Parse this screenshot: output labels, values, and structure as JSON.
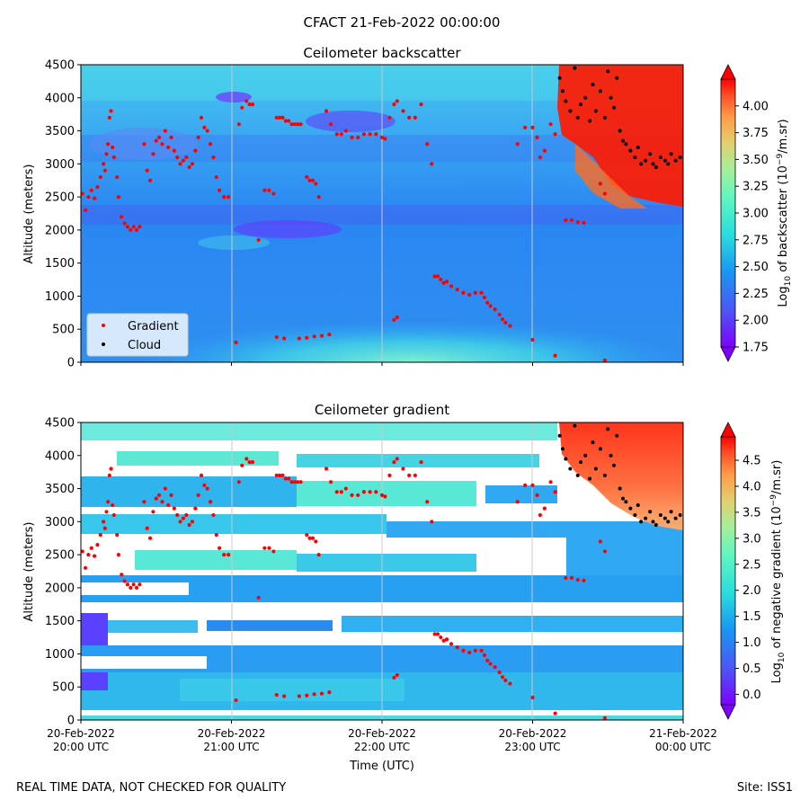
{
  "figure_title": "CFACT 21-Feb-2022 00:00:00",
  "footer_left": "REAL TIME DATA, NOT CHECKED FOR QUALITY",
  "footer_right": "Site: ISS1",
  "chart_data": [
    {
      "type": "heatmap",
      "title": "Ceilometer backscatter",
      "xlabel": "",
      "ylabel": "Altitude (meters)",
      "ylim": [
        0,
        4500
      ],
      "y_ticks": [
        "0",
        "500",
        "1000",
        "1500",
        "2000",
        "2500",
        "3000",
        "3500",
        "4000",
        "4500"
      ],
      "x_range_hours": [
        0,
        4
      ],
      "colorbar": {
        "label": "Log10 of backscatter (10^-9/m.sr)",
        "label_parts": [
          "Log",
          "10",
          " of backscatter (10",
          "−9",
          "/m.sr)"
        ],
        "range": [
          1.75,
          4.25
        ],
        "ticks": [
          "1.75",
          "2.00",
          "2.25",
          "2.50",
          "2.75",
          "3.00",
          "3.25",
          "3.50",
          "3.75",
          "4.00"
        ],
        "extend": "both"
      },
      "legend": {
        "placement": "lower-left",
        "entries": [
          {
            "name": "Gradient",
            "color": "#ff0000"
          },
          {
            "name": "Cloud",
            "color": "#000000"
          }
        ]
      }
    },
    {
      "type": "heatmap",
      "title": "Ceilometer gradient",
      "xlabel": "Time (UTC)",
      "ylabel": "Altitude (meters)",
      "ylim": [
        0,
        4500
      ],
      "y_ticks": [
        "0",
        "500",
        "1000",
        "1500",
        "2000",
        "2500",
        "3000",
        "3500",
        "4000",
        "4500"
      ],
      "x_range_hours": [
        0,
        4
      ],
      "x_ticks": [
        {
          "date": "20-Feb-2022",
          "time": "20:00 UTC"
        },
        {
          "date": "20-Feb-2022",
          "time": "21:00 UTC"
        },
        {
          "date": "20-Feb-2022",
          "time": "22:00 UTC"
        },
        {
          "date": "20-Feb-2022",
          "time": "23:00 UTC"
        },
        {
          "date": "21-Feb-2022",
          "time": "00:00 UTC"
        }
      ],
      "colorbar": {
        "label": "Log10 of negative gradient (10^-9/m.sr)",
        "label_parts": [
          "Log",
          "10",
          " of negative gradient (10",
          "−9",
          "/m.sr)"
        ],
        "range": [
          -0.2,
          4.95
        ],
        "ticks": [
          "0.0",
          "0.5",
          "1.0",
          "1.5",
          "2.0",
          "2.5",
          "3.0",
          "3.5",
          "4.0",
          "4.5"
        ],
        "extend": "both"
      }
    }
  ],
  "gradient_points": [
    [
      0.01,
      2550
    ],
    [
      0.03,
      2300
    ],
    [
      0.05,
      2500
    ],
    [
      0.07,
      2600
    ],
    [
      0.09,
      2480
    ],
    [
      0.11,
      2650
    ],
    [
      0.13,
      2800
    ],
    [
      0.15,
      3000
    ],
    [
      0.16,
      2900
    ],
    [
      0.17,
      3150
    ],
    [
      0.18,
      3300
    ],
    [
      0.19,
      3700
    ],
    [
      0.2,
      3800
    ],
    [
      0.21,
      3250
    ],
    [
      0.22,
      3100
    ],
    [
      0.24,
      2800
    ],
    [
      0.25,
      2500
    ],
    [
      0.27,
      2200
    ],
    [
      0.29,
      2100
    ],
    [
      0.31,
      2050
    ],
    [
      0.33,
      2000
    ],
    [
      0.35,
      2050
    ],
    [
      0.37,
      2000
    ],
    [
      0.39,
      2050
    ],
    [
      0.42,
      3300
    ],
    [
      0.44,
      2900
    ],
    [
      0.46,
      2750
    ],
    [
      0.48,
      3150
    ],
    [
      0.5,
      3350
    ],
    [
      0.52,
      3400
    ],
    [
      0.54,
      3300
    ],
    [
      0.56,
      3500
    ],
    [
      0.58,
      3250
    ],
    [
      0.6,
      3400
    ],
    [
      0.62,
      3200
    ],
    [
      0.64,
      3100
    ],
    [
      0.66,
      3000
    ],
    [
      0.68,
      3050
    ],
    [
      0.7,
      3100
    ],
    [
      0.72,
      2950
    ],
    [
      0.74,
      3000
    ],
    [
      0.76,
      3200
    ],
    [
      0.78,
      3400
    ],
    [
      0.8,
      3700
    ],
    [
      0.82,
      3550
    ],
    [
      0.84,
      3500
    ],
    [
      0.86,
      3300
    ],
    [
      0.88,
      3100
    ],
    [
      0.9,
      2800
    ],
    [
      0.92,
      2600
    ],
    [
      0.95,
      2500
    ],
    [
      0.98,
      2500
    ],
    [
      1.03,
      300
    ],
    [
      1.05,
      3600
    ],
    [
      1.07,
      3850
    ],
    [
      1.1,
      3950
    ],
    [
      1.12,
      3900
    ],
    [
      1.14,
      3900
    ],
    [
      1.18,
      1850
    ],
    [
      1.22,
      2600
    ],
    [
      1.25,
      2600
    ],
    [
      1.28,
      2550
    ],
    [
      1.3,
      3700
    ],
    [
      1.32,
      3700
    ],
    [
      1.34,
      3700
    ],
    [
      1.36,
      3650
    ],
    [
      1.38,
      3650
    ],
    [
      1.4,
      3600
    ],
    [
      1.42,
      3600
    ],
    [
      1.44,
      3600
    ],
    [
      1.46,
      3600
    ],
    [
      1.5,
      2800
    ],
    [
      1.52,
      2750
    ],
    [
      1.54,
      2750
    ],
    [
      1.56,
      2700
    ],
    [
      1.58,
      2500
    ],
    [
      1.63,
      3800
    ],
    [
      1.66,
      3600
    ],
    [
      1.7,
      3450
    ],
    [
      1.73,
      3450
    ],
    [
      1.76,
      3500
    ],
    [
      1.8,
      3400
    ],
    [
      1.84,
      3400
    ],
    [
      1.88,
      3450
    ],
    [
      1.92,
      3450
    ],
    [
      1.96,
      3450
    ],
    [
      2.0,
      3400
    ],
    [
      2.02,
      3380
    ],
    [
      2.05,
      3700
    ],
    [
      2.08,
      3900
    ],
    [
      2.1,
      3950
    ],
    [
      2.14,
      3800
    ],
    [
      2.18,
      3700
    ],
    [
      2.22,
      3700
    ],
    [
      2.26,
      3900
    ],
    [
      2.3,
      3300
    ],
    [
      2.33,
      3000
    ],
    [
      2.35,
      1300
    ],
    [
      2.37,
      1300
    ],
    [
      2.39,
      1250
    ],
    [
      2.41,
      1200
    ],
    [
      2.43,
      1220
    ],
    [
      2.46,
      1150
    ],
    [
      2.5,
      1100
    ],
    [
      2.54,
      1050
    ],
    [
      2.58,
      1020
    ],
    [
      2.62,
      1050
    ],
    [
      2.66,
      1050
    ],
    [
      2.68,
      980
    ],
    [
      2.7,
      900
    ],
    [
      2.72,
      850
    ],
    [
      2.75,
      800
    ],
    [
      2.78,
      720
    ],
    [
      2.8,
      650
    ],
    [
      2.82,
      600
    ],
    [
      2.85,
      550
    ],
    [
      2.9,
      3300
    ],
    [
      2.95,
      3550
    ],
    [
      3.0,
      3550
    ],
    [
      3.03,
      3400
    ],
    [
      3.05,
      3100
    ],
    [
      3.08,
      3200
    ],
    [
      3.12,
      3600
    ],
    [
      3.15,
      3450
    ],
    [
      3.22,
      2150
    ],
    [
      3.26,
      2150
    ],
    [
      3.3,
      2120
    ],
    [
      3.34,
      2110
    ],
    [
      3.45,
      2700
    ],
    [
      3.48,
      2550
    ],
    [
      1.3,
      380
    ],
    [
      1.35,
      360
    ],
    [
      1.45,
      360
    ],
    [
      1.5,
      370
    ],
    [
      1.55,
      390
    ],
    [
      1.6,
      400
    ],
    [
      1.65,
      420
    ],
    [
      2.08,
      640
    ],
    [
      2.1,
      680
    ],
    [
      3.0,
      340
    ],
    [
      3.15,
      100
    ],
    [
      3.48,
      30
    ]
  ],
  "cloud_points": [
    [
      3.18,
      4300
    ],
    [
      3.2,
      4100
    ],
    [
      3.22,
      3950
    ],
    [
      3.25,
      3800
    ],
    [
      3.28,
      4450
    ],
    [
      3.3,
      3700
    ],
    [
      3.32,
      3900
    ],
    [
      3.35,
      4000
    ],
    [
      3.38,
      3650
    ],
    [
      3.4,
      4200
    ],
    [
      3.42,
      3800
    ],
    [
      3.45,
      4100
    ],
    [
      3.48,
      3700
    ],
    [
      3.5,
      4400
    ],
    [
      3.52,
      4000
    ],
    [
      3.54,
      3850
    ],
    [
      3.56,
      4300
    ],
    [
      3.58,
      3500
    ],
    [
      3.6,
      3350
    ],
    [
      3.62,
      3300
    ],
    [
      3.65,
      3200
    ],
    [
      3.68,
      3100
    ],
    [
      3.7,
      3250
    ],
    [
      3.72,
      3000
    ],
    [
      3.75,
      3050
    ],
    [
      3.78,
      3150
    ],
    [
      3.8,
      3000
    ],
    [
      3.82,
      2950
    ],
    [
      3.85,
      3100
    ],
    [
      3.88,
      3050
    ],
    [
      3.9,
      3000
    ],
    [
      3.92,
      3150
    ],
    [
      3.95,
      3050
    ],
    [
      3.98,
      3100
    ]
  ]
}
